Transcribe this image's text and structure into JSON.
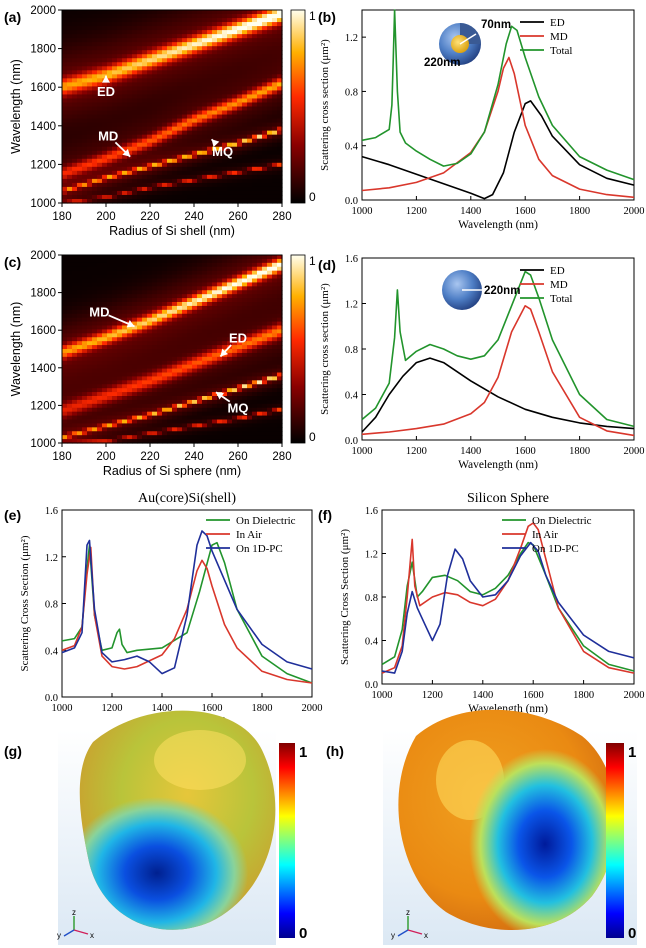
{
  "chart_data": [
    {
      "panel": "(a)",
      "type": "heatmap",
      "xlabel": "Radius of Si shell (nm)",
      "ylabel": "Wavelength (nm)",
      "xlim": [
        180,
        280
      ],
      "ylim": [
        1000,
        2000
      ],
      "xticks": [
        "180",
        "200",
        "220",
        "240",
        "260",
        "280"
      ],
      "yticks": [
        "1000",
        "1200",
        "1400",
        "1600",
        "1800",
        "2000"
      ],
      "colorbar": {
        "min": "0",
        "max": "1"
      },
      "annotations": [
        {
          "label": "ED",
          "x": 200,
          "y": 1660,
          "tx": 200,
          "ty": 1580
        },
        {
          "label": "MD",
          "x": 211,
          "y": 1240,
          "tx": 201,
          "ty": 1350
        },
        {
          "label": "MQ",
          "x": 248,
          "y": 1330,
          "tx": 253,
          "ty": 1270
        }
      ],
      "bands": [
        {
          "x": [
            180,
            200,
            220,
            240,
            260,
            280
          ],
          "y": [
            1600,
            1660,
            1740,
            1820,
            1900,
            1980
          ],
          "w": 30,
          "peak": 0.9,
          "glow": 0.55
        },
        {
          "x": [
            180,
            200,
            220,
            240,
            260,
            280
          ],
          "y": [
            1150,
            1230,
            1320,
            1430,
            1520,
            1620
          ],
          "w": 22,
          "peak": 0.62,
          "glow": 0.4
        },
        {
          "x": [
            180,
            200,
            220,
            240,
            260,
            280
          ],
          "y": [
            1060,
            1130,
            1190,
            1250,
            1310,
            1380
          ],
          "w": 7,
          "peak": 0.78,
          "glow": 0.35
        },
        {
          "x": [
            180,
            200,
            220,
            240,
            260,
            280
          ],
          "y": [
            1000,
            1030,
            1080,
            1120,
            1160,
            1200
          ],
          "w": 5,
          "peak": 0.5,
          "glow": 0.2
        }
      ]
    },
    {
      "panel": "(b)",
      "type": "line",
      "xlabel": "Wavelength (nm)",
      "ylabel": "Scattering cross section (μm²)",
      "xlim": [
        1000,
        2000
      ],
      "ylim": [
        0,
        1.4
      ],
      "xticks": [
        1000,
        1200,
        1400,
        1600,
        1800,
        2000
      ],
      "yticks": [
        0.0,
        0.4,
        0.8,
        1.2
      ],
      "ytick_decimals": 1,
      "inset_labels": [
        "70nm",
        "220nm"
      ],
      "series": [
        {
          "name": "ED",
          "color": "#000000",
          "x": [
            1000,
            1100,
            1200,
            1300,
            1400,
            1450,
            1480,
            1520,
            1560,
            1600,
            1620,
            1660,
            1700,
            1800,
            1900,
            2000
          ],
          "y": [
            0.32,
            0.26,
            0.19,
            0.12,
            0.05,
            0.01,
            0.04,
            0.2,
            0.5,
            0.71,
            0.73,
            0.62,
            0.47,
            0.26,
            0.16,
            0.11
          ]
        },
        {
          "name": "MD",
          "color": "#d9372c",
          "x": [
            1000,
            1100,
            1200,
            1300,
            1400,
            1450,
            1500,
            1520,
            1540,
            1560,
            1600,
            1650,
            1700,
            1800,
            1900,
            2000
          ],
          "y": [
            0.07,
            0.09,
            0.13,
            0.2,
            0.35,
            0.5,
            0.8,
            0.97,
            1.05,
            0.93,
            0.55,
            0.3,
            0.18,
            0.08,
            0.04,
            0.02
          ]
        },
        {
          "name": "Total",
          "color": "#22942c",
          "x": [
            1000,
            1050,
            1100,
            1110,
            1115,
            1120,
            1130,
            1140,
            1160,
            1200,
            1250,
            1300,
            1350,
            1400,
            1450,
            1500,
            1530,
            1550,
            1570,
            1600,
            1650,
            1700,
            1800,
            1900,
            2000
          ],
          "y": [
            0.44,
            0.46,
            0.52,
            0.7,
            1.05,
            1.4,
            0.8,
            0.5,
            0.42,
            0.36,
            0.3,
            0.25,
            0.27,
            0.34,
            0.5,
            0.85,
            1.15,
            1.28,
            1.25,
            1.05,
            0.76,
            0.55,
            0.32,
            0.22,
            0.15
          ]
        }
      ]
    },
    {
      "panel": "(c)",
      "type": "heatmap",
      "xlabel": "Radius of Si sphere (nm)",
      "ylabel": "Wavelength (nm)",
      "xlim": [
        180,
        280
      ],
      "ylim": [
        1000,
        2000
      ],
      "xticks": [
        "180",
        "200",
        "220",
        "240",
        "260",
        "280"
      ],
      "yticks": [
        "1000",
        "1200",
        "1400",
        "1600",
        "1800",
        "2000"
      ],
      "colorbar": {
        "min": "0",
        "max": "1"
      },
      "annotations": [
        {
          "label": "MD",
          "x": 213,
          "y": 1620,
          "tx": 197,
          "ty": 1700
        },
        {
          "label": "ED",
          "x": 252,
          "y": 1460,
          "tx": 260,
          "ty": 1560
        },
        {
          "label": "MQ",
          "x": 250,
          "y": 1270,
          "tx": 260,
          "ty": 1190
        }
      ],
      "bands": [
        {
          "x": [
            180,
            200,
            220,
            240,
            260,
            280
          ],
          "y": [
            1480,
            1560,
            1650,
            1750,
            1850,
            1950
          ],
          "w": 24,
          "peak": 0.88,
          "glow": 0.55
        },
        {
          "x": [
            180,
            200,
            220,
            240,
            260,
            280
          ],
          "y": [
            1170,
            1250,
            1330,
            1420,
            1510,
            1600
          ],
          "w": 26,
          "peak": 0.55,
          "glow": 0.4
        },
        {
          "x": [
            180,
            200,
            220,
            240,
            260,
            280
          ],
          "y": [
            1030,
            1090,
            1150,
            1220,
            1290,
            1360
          ],
          "w": 7,
          "peak": 0.82,
          "glow": 0.35
        },
        {
          "x": [
            180,
            200,
            220,
            240,
            260,
            280
          ],
          "y": [
            1000,
            1010,
            1050,
            1090,
            1130,
            1180
          ],
          "w": 5,
          "peak": 0.5,
          "glow": 0.2
        }
      ]
    },
    {
      "panel": "(d)",
      "type": "line",
      "xlabel": "Wavelength (nm)",
      "ylabel": "Scattering cross section (μm²)",
      "xlim": [
        1000,
        2000
      ],
      "ylim": [
        0,
        1.6
      ],
      "xticks": [
        1000,
        1200,
        1400,
        1600,
        1800,
        2000
      ],
      "yticks": [
        0.0,
        0.4,
        0.8,
        1.2,
        1.6
      ],
      "ytick_decimals": 1,
      "inset_labels": [
        "220nm"
      ],
      "series": [
        {
          "name": "ED",
          "color": "#000000",
          "x": [
            1000,
            1050,
            1100,
            1150,
            1200,
            1250,
            1300,
            1400,
            1500,
            1600,
            1700,
            1800,
            1900,
            2000
          ],
          "y": [
            0.07,
            0.2,
            0.4,
            0.56,
            0.68,
            0.72,
            0.68,
            0.52,
            0.38,
            0.27,
            0.2,
            0.15,
            0.12,
            0.1
          ]
        },
        {
          "name": "MD",
          "color": "#d9372c",
          "x": [
            1000,
            1100,
            1200,
            1300,
            1400,
            1450,
            1500,
            1550,
            1600,
            1620,
            1650,
            1700,
            1800,
            1900,
            2000
          ],
          "y": [
            0.05,
            0.07,
            0.1,
            0.14,
            0.23,
            0.33,
            0.55,
            0.95,
            1.18,
            1.15,
            0.95,
            0.6,
            0.2,
            0.08,
            0.04
          ]
        },
        {
          "name": "Total",
          "color": "#22942c",
          "x": [
            1000,
            1050,
            1100,
            1120,
            1130,
            1140,
            1160,
            1200,
            1250,
            1300,
            1350,
            1400,
            1450,
            1500,
            1550,
            1600,
            1620,
            1650,
            1700,
            1800,
            1900,
            2000
          ],
          "y": [
            0.18,
            0.28,
            0.5,
            0.9,
            1.32,
            0.95,
            0.7,
            0.78,
            0.84,
            0.8,
            0.74,
            0.71,
            0.74,
            0.88,
            1.18,
            1.48,
            1.45,
            1.25,
            0.88,
            0.4,
            0.18,
            0.12
          ]
        }
      ]
    },
    {
      "panel": "(e)",
      "type": "line",
      "title": "Au(core)Si(shell)",
      "xlabel": "Wavelength (nm)",
      "ylabel": "Scattering Cross Section (μm²)",
      "xlim": [
        1000,
        2000
      ],
      "ylim": [
        0,
        1.6
      ],
      "xticks": [
        1000,
        1200,
        1400,
        1600,
        1800,
        2000
      ],
      "yticks": [
        0.0,
        0.4,
        0.8,
        1.2,
        1.6
      ],
      "ytick_decimals": 1,
      "series": [
        {
          "name": "On Dielectric",
          "color": "#22942c",
          "x": [
            1000,
            1050,
            1080,
            1100,
            1110,
            1130,
            1160,
            1200,
            1220,
            1230,
            1240,
            1260,
            1300,
            1400,
            1500,
            1550,
            1600,
            1620,
            1650,
            1700,
            1800,
            1900,
            2000
          ],
          "y": [
            0.48,
            0.5,
            0.6,
            1.1,
            1.3,
            0.7,
            0.4,
            0.42,
            0.55,
            0.58,
            0.45,
            0.38,
            0.4,
            0.42,
            0.55,
            0.9,
            1.3,
            1.32,
            1.15,
            0.75,
            0.35,
            0.2,
            0.12
          ]
        },
        {
          "name": "In Air",
          "color": "#d9372c",
          "x": [
            1000,
            1050,
            1080,
            1100,
            1115,
            1130,
            1160,
            1200,
            1250,
            1300,
            1400,
            1450,
            1500,
            1540,
            1560,
            1580,
            1600,
            1650,
            1700,
            1800,
            1900,
            2000
          ],
          "y": [
            0.4,
            0.44,
            0.6,
            1.05,
            1.28,
            0.7,
            0.35,
            0.26,
            0.24,
            0.26,
            0.36,
            0.5,
            0.75,
            1.08,
            1.17,
            1.1,
            0.95,
            0.62,
            0.42,
            0.22,
            0.15,
            0.12
          ]
        },
        {
          "name": "On 1D-PC",
          "color": "#1f2f9a",
          "x": [
            1000,
            1050,
            1080,
            1100,
            1110,
            1130,
            1160,
            1200,
            1250,
            1300,
            1350,
            1400,
            1450,
            1500,
            1540,
            1560,
            1580,
            1600,
            1650,
            1700,
            1800,
            1900,
            2000
          ],
          "y": [
            0.38,
            0.42,
            0.55,
            1.3,
            1.34,
            0.75,
            0.38,
            0.3,
            0.32,
            0.35,
            0.3,
            0.2,
            0.25,
            0.7,
            1.3,
            1.42,
            1.38,
            1.25,
            1.0,
            0.75,
            0.45,
            0.3,
            0.24
          ]
        }
      ]
    },
    {
      "panel": "(f)",
      "type": "line",
      "title": "Silicon Sphere",
      "xlabel": "Wavelength (nm)",
      "ylabel": "Scattering Cross Section (μm²)",
      "xlim": [
        1000,
        2000
      ],
      "ylim": [
        0,
        1.6
      ],
      "xticks": [
        1000,
        1200,
        1400,
        1600,
        1800,
        2000
      ],
      "yticks": [
        0.0,
        0.4,
        0.8,
        1.2,
        1.6
      ],
      "ytick_decimals": 1,
      "series": [
        {
          "name": "On Dielectric",
          "color": "#22942c",
          "x": [
            1000,
            1050,
            1080,
            1100,
            1120,
            1140,
            1160,
            1200,
            1250,
            1300,
            1350,
            1400,
            1450,
            1500,
            1550,
            1580,
            1600,
            1650,
            1700,
            1800,
            1900,
            2000
          ],
          "y": [
            0.18,
            0.25,
            0.5,
            0.9,
            1.12,
            0.8,
            0.85,
            0.98,
            1.0,
            0.95,
            0.85,
            0.82,
            0.88,
            1.0,
            1.2,
            1.3,
            1.28,
            1.0,
            0.7,
            0.35,
            0.18,
            0.12
          ]
        },
        {
          "name": "In Air",
          "color": "#d9372c",
          "x": [
            1000,
            1050,
            1080,
            1100,
            1120,
            1130,
            1150,
            1200,
            1250,
            1300,
            1350,
            1400,
            1450,
            1500,
            1550,
            1580,
            1600,
            1620,
            1650,
            1700,
            1800,
            1900,
            2000
          ],
          "y": [
            0.1,
            0.15,
            0.35,
            0.8,
            1.33,
            0.9,
            0.72,
            0.8,
            0.84,
            0.82,
            0.75,
            0.72,
            0.78,
            0.95,
            1.25,
            1.45,
            1.48,
            1.42,
            1.15,
            0.7,
            0.3,
            0.15,
            0.1
          ]
        },
        {
          "name": "On 1D-PC",
          "color": "#1f2f9a",
          "x": [
            1000,
            1050,
            1080,
            1100,
            1120,
            1140,
            1170,
            1200,
            1230,
            1260,
            1290,
            1320,
            1350,
            1400,
            1450,
            1500,
            1550,
            1590,
            1620,
            1650,
            1700,
            1800,
            1900,
            2000
          ],
          "y": [
            0.12,
            0.1,
            0.3,
            0.65,
            0.85,
            0.7,
            0.55,
            0.4,
            0.55,
            1.0,
            1.24,
            1.15,
            0.95,
            0.8,
            0.82,
            0.95,
            1.18,
            1.3,
            1.22,
            1.0,
            0.75,
            0.45,
            0.3,
            0.24
          ]
        }
      ]
    }
  ],
  "panels_3d": [
    {
      "panel": "(g)",
      "colorbar": {
        "min": "0",
        "max": "1"
      },
      "axes": [
        "z",
        "y",
        "x"
      ]
    },
    {
      "panel": "(h)",
      "colorbar": {
        "min": "0",
        "max": "1"
      },
      "axes": [
        "z",
        "y",
        "x"
      ]
    }
  ]
}
